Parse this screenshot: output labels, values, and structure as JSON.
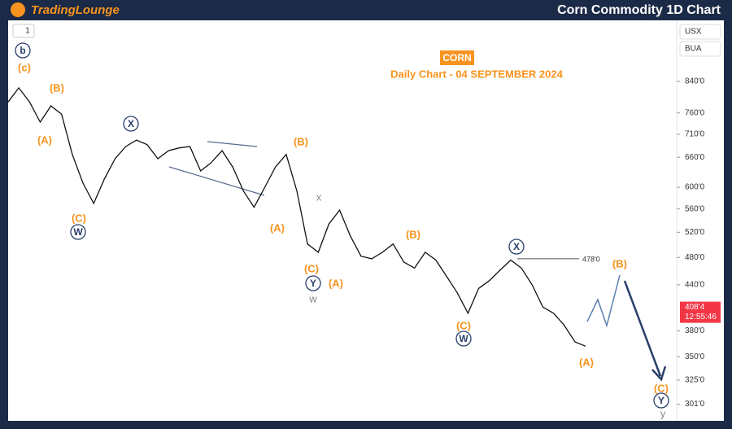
{
  "header": {
    "brand": "TradingLounge",
    "title": "Corn Commodity 1D Chart"
  },
  "toolbar": {
    "interval": "1",
    "currency": "USX",
    "exchange": "BUA"
  },
  "chart_data": {
    "type": "line",
    "title": "CORN",
    "subtitle": "Daily Chart - 04 SEPTEMBER 2024",
    "color": "#111111",
    "log": true,
    "values": [
      787,
      823,
      787,
      738,
      777,
      757,
      666,
      608,
      570,
      616,
      657,
      683,
      697,
      687,
      657,
      674,
      680,
      683,
      632,
      649,
      674,
      640,
      593,
      563,
      600,
      640,
      666,
      593,
      501,
      488,
      534,
      558,
      514,
      482,
      478,
      488,
      501,
      473,
      464,
      488,
      476,
      452,
      429,
      402,
      435,
      446,
      461,
      476,
      464,
      440,
      410,
      402,
      387,
      367,
      362
    ],
    "ylim": [
      287,
      1020
    ],
    "yticks": [
      {
        "value": 840,
        "label": "840'0"
      },
      {
        "value": 760,
        "label": "760'0"
      },
      {
        "value": 710,
        "label": "710'0"
      },
      {
        "value": 660,
        "label": "660'0"
      },
      {
        "value": 600,
        "label": "600'0"
      },
      {
        "value": 560,
        "label": "560'0"
      },
      {
        "value": 520,
        "label": "520'0"
      },
      {
        "value": 480,
        "label": "480'0"
      },
      {
        "value": 440,
        "label": "440'0"
      },
      {
        "value": 380,
        "label": "380'0"
      },
      {
        "value": 350,
        "label": "350'0"
      },
      {
        "value": 325,
        "label": "325'0"
      },
      {
        "value": 301,
        "label": "301'0"
      }
    ],
    "level": {
      "value": 478,
      "label": "478'0"
    },
    "last_price": {
      "value": 408.5,
      "label": "408'4",
      "countdown": "12:55:46"
    },
    "annotations": [
      "(c)",
      "b",
      "(B)",
      "(A)",
      "(C)",
      "W",
      "X",
      "(B)",
      "(A)",
      "x",
      "(C)",
      "Y",
      "w",
      "(A)",
      "(B)",
      "X",
      "(C)",
      "W",
      "(A)",
      "(B)",
      "(C)",
      "Y",
      "y"
    ]
  }
}
